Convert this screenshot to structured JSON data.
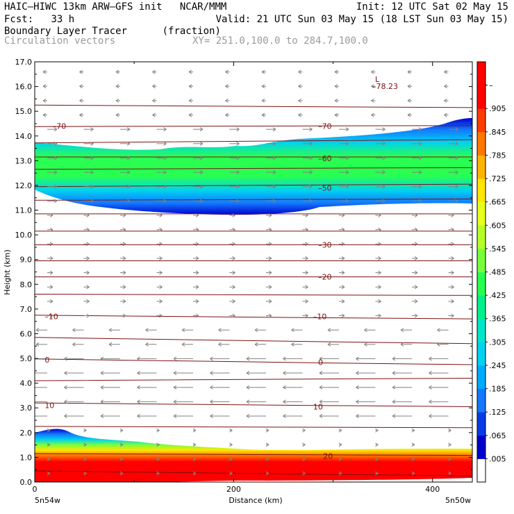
{
  "header": {
    "model": "HAIC–HIWC 13km ARW–GFS init",
    "org": "NCAR/MMM",
    "init": "Init: 12 UTC Sat 02 May 15",
    "fcst_label": "Fcst:",
    "fcst_value": "33 h",
    "valid": "Valid: 21 UTC Sun 03 May 15 (18 LST Sun 03 May 15)",
    "field": "Boundary Layer Tracer",
    "field_units": "(fraction)",
    "vectors": "Circulation vectors",
    "xy": "XY= 251.0,100.0 to 284.7,100.0"
  },
  "chart_data": {
    "type": "heatmap",
    "xlabel": "Distance (km)",
    "ylabel": "Height (km)",
    "xlim": [
      0,
      440
    ],
    "ylim": [
      0,
      17
    ],
    "x_ticks": [
      "0",
      "200",
      "400"
    ],
    "x_tick_values": [
      0,
      200,
      400
    ],
    "y_ticks": [
      "0.0",
      "1.0",
      "2.0",
      "3.0",
      "4.0",
      "5.0",
      "6.0",
      "7.0",
      "8.0",
      "9.0",
      "10.0",
      "11.0",
      "12.0",
      "13.0",
      "14.0",
      "15.0",
      "16.0",
      "17.0"
    ],
    "endpoint_left": "5n54w",
    "endpoint_right": "5n50w",
    "colorbar": {
      "labels": [
        ".005",
        ".065",
        ".125",
        ".185",
        ".245",
        ".305",
        ".365",
        ".425",
        ".485",
        ".545",
        ".605",
        ".665",
        ".725",
        ".785",
        ".845",
        ".905",
        "–"
      ],
      "colors": [
        "#ffffff",
        "#0000cc",
        "#0a3ce6",
        "#1478ff",
        "#00aaff",
        "#00d2f0",
        "#00e6c8",
        "#00f08c",
        "#28ff50",
        "#78ff3c",
        "#b4ff28",
        "#e6ff1e",
        "#ffe600",
        "#ffb400",
        "#ff7800",
        "#ff3c00",
        "#ff0000",
        "#ff0000"
      ]
    },
    "isotherm_labels": [
      {
        "text": "–70",
        "x": 18,
        "z": 14.4
      },
      {
        "text": "–70",
        "x": 285,
        "z": 14.4
      },
      {
        "text": "–60",
        "x": 285,
        "z": 13.1
      },
      {
        "text": "–50",
        "x": 285,
        "z": 11.9
      },
      {
        "text": "–30",
        "x": 285,
        "z": 9.6
      },
      {
        "text": "–20",
        "x": 285,
        "z": 8.3
      },
      {
        "text": "–10",
        "x": 10,
        "z": 6.7
      },
      {
        "text": "–10",
        "x": 280,
        "z": 6.7
      },
      {
        "text": "0",
        "x": 10,
        "z": 4.95
      },
      {
        "text": "0",
        "x": 285,
        "z": 4.85
      },
      {
        "text": "10",
        "x": 10,
        "z": 3.1
      },
      {
        "text": "10",
        "x": 280,
        "z": 3.05
      },
      {
        "text": "20",
        "x": 290,
        "z": 1.05
      }
    ],
    "low_marker": {
      "label": "L",
      "value": "–78.23",
      "x": 352,
      "z": 16.2
    }
  }
}
